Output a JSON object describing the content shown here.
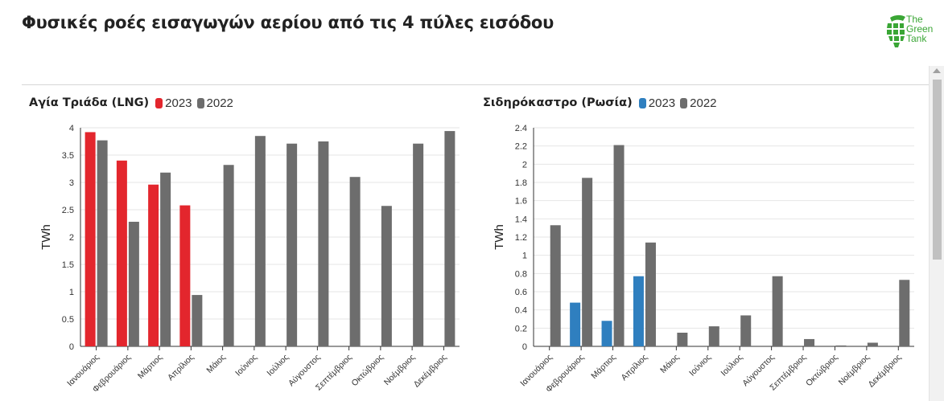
{
  "page": {
    "title": "Φυσικές ροές εισαγωγών αερίου από τις 4 πύλες εισόδου",
    "logo_lines": [
      "The",
      "Green",
      "Tank"
    ]
  },
  "colors": {
    "gray": "#6d6d6d",
    "lng_2023": "#e3262d",
    "russia_2023": "#2f7fbf",
    "grid": "#e6e6e6",
    "logo_green": "#3aa635"
  },
  "chart_data": [
    {
      "type": "bar",
      "title": "Αγία Τριάδα (LNG)",
      "ylabel": "TWh",
      "xlabel": "",
      "ylim": [
        0,
        4
      ],
      "yticks": [
        "0",
        "0.5",
        "1",
        "1.5",
        "2",
        "2.5",
        "3",
        "3.5",
        "4"
      ],
      "yticks_values": [
        0,
        0.5,
        1,
        1.5,
        2,
        2.5,
        3,
        3.5,
        4
      ],
      "categories": [
        "Ιανουάριος",
        "Φεβρουάριος",
        "Μάρτιος",
        "Απρίλιος",
        "Μάιος",
        "Ιούνιος",
        "Ιούλιος",
        "Αύγουστος",
        "Σεπτέμβριος",
        "Οκτώβριος",
        "Νοέμβριος",
        "Δεκέμβριος"
      ],
      "series": [
        {
          "name": "2023",
          "color": "#e3262d",
          "values": [
            3.92,
            3.4,
            2.96,
            2.58,
            null,
            null,
            null,
            null,
            null,
            null,
            null,
            null
          ]
        },
        {
          "name": "2022",
          "color": "#6d6d6d",
          "values": [
            3.77,
            2.28,
            3.18,
            0.94,
            3.32,
            3.85,
            3.71,
            3.75,
            3.1,
            2.57,
            3.71,
            3.94
          ]
        }
      ],
      "grid": true,
      "legend": "top-left"
    },
    {
      "type": "bar",
      "title": "Σιδηρόκαστρο (Ρωσία)",
      "ylabel": "TWh",
      "xlabel": "",
      "ylim": [
        0,
        2.4
      ],
      "yticks": [
        "0",
        "0.2",
        "0.4",
        "0.6",
        "0.8",
        "1",
        "1.2",
        "1.4",
        "1.6",
        "1.8",
        "2",
        "2.2",
        "2.4"
      ],
      "yticks_values": [
        0,
        0.2,
        0.4,
        0.6,
        0.8,
        1,
        1.2,
        1.4,
        1.6,
        1.8,
        2,
        2.2,
        2.4
      ],
      "categories": [
        "Ιανουάριος",
        "Φεβρουάριος",
        "Μάρτιος",
        "Απρίλιος",
        "Μάιος",
        "Ιούνιος",
        "Ιούλιος",
        "Αύγουστος",
        "Σεπτέμβριος",
        "Οκτώβριος",
        "Νοέμβριος",
        "Δεκέμβριος"
      ],
      "series": [
        {
          "name": "2023",
          "color": "#2f7fbf",
          "values": [
            0,
            0.48,
            0.28,
            0.77,
            null,
            null,
            null,
            null,
            null,
            null,
            null,
            null
          ]
        },
        {
          "name": "2022",
          "color": "#6d6d6d",
          "values": [
            1.33,
            1.85,
            2.21,
            1.14,
            0.15,
            0.22,
            0.34,
            0.77,
            0.08,
            0.01,
            0.04,
            0.73
          ]
        }
      ],
      "grid": true,
      "legend": "top-left"
    }
  ]
}
